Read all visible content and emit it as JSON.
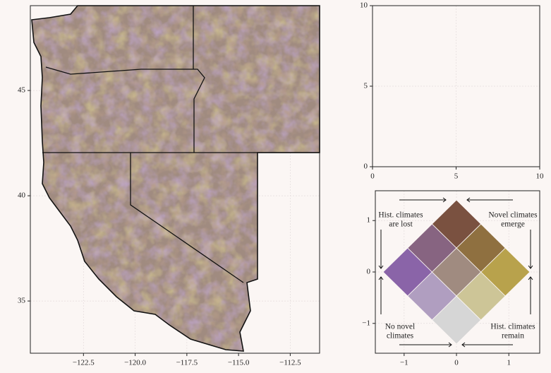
{
  "chart_data": [
    {
      "type": "map",
      "xlim": [
        -125.07,
        -111.08
      ],
      "ylim": [
        32.52,
        49.03
      ],
      "xticks": [
        {
          "value": -122.5,
          "label": "−122.5"
        },
        {
          "value": -120,
          "label": "−120.0"
        },
        {
          "value": -117.5,
          "label": "−117.5"
        },
        {
          "value": -115,
          "label": "−115.0"
        },
        {
          "value": -112.5,
          "label": "−112.5"
        }
      ],
      "yticks": [
        35,
        40,
        45
      ],
      "grid": true
    },
    {
      "type": "empty",
      "xlim": [
        0,
        10
      ],
      "ylim": [
        0,
        10
      ],
      "xticks": [
        0,
        5,
        10
      ],
      "yticks": [
        0,
        5,
        10
      ],
      "grid": true
    },
    {
      "type": "bivariate-legend",
      "xlim": [
        -1.55,
        1.59
      ],
      "ylim": [
        -1.58,
        1.58
      ],
      "xticks": [
        {
          "value": -1,
          "label": "−1"
        },
        0,
        1
      ],
      "yticks": [
        {
          "value": -1,
          "label": "−1"
        },
        0,
        1
      ],
      "grid": true,
      "colors": [
        [
          "#d6d6d6",
          "#cdc597",
          "#b8a24c"
        ],
        [
          "#b09ec0",
          "#a08b80",
          "#8f7040"
        ],
        [
          "#8a64a8",
          "#876481",
          "#7a5140"
        ]
      ],
      "annotations": [
        [
          "Hist. climates",
          "are lost"
        ],
        [
          "Novel climates",
          "emerge"
        ],
        [
          "No novel",
          "climates"
        ],
        [
          "Hist. climates",
          "remain"
        ]
      ]
    }
  ]
}
